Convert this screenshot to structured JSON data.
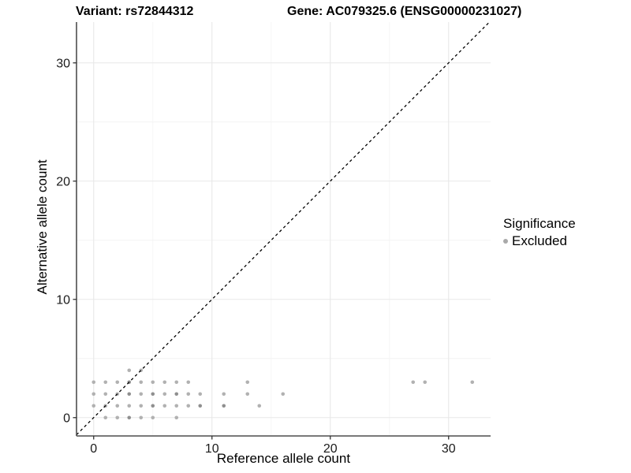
{
  "titles": {
    "variant": "Variant: rs72844312",
    "gene": "Gene: AC079325.6 (ENSG00000231027)"
  },
  "legend": {
    "title": "Significance",
    "items": [
      {
        "label": "Excluded",
        "color": "#a9a9a9",
        "shape": "circle"
      }
    ]
  },
  "chart_data": {
    "type": "scatter",
    "title": "",
    "xlabel": "Reference allele count",
    "ylabel": "Alternative allele count",
    "xlim": [
      -1.45,
      33.55
    ],
    "ylim": [
      -1.55,
      33.45
    ],
    "x_ticks": [
      0,
      10,
      20,
      30
    ],
    "y_ticks": [
      0,
      10,
      20,
      30
    ],
    "x_minor_ticks": [
      5,
      15,
      25
    ],
    "y_minor_ticks": [
      5,
      15,
      25
    ],
    "grid": true,
    "legend_position": "right",
    "identity_line": {
      "slope": 1,
      "intercept": 0,
      "style": "dashed",
      "color": "#000000"
    },
    "series": [
      {
        "name": "Excluded",
        "color": "#b1b1b1",
        "dark_color": "#8f8f8f",
        "points": [
          [
            1,
            0
          ],
          [
            2,
            0
          ],
          [
            3,
            0,
            1
          ],
          [
            4,
            0
          ],
          [
            5,
            0
          ],
          [
            7,
            0
          ],
          [
            0,
            1
          ],
          [
            1,
            1
          ],
          [
            2,
            1
          ],
          [
            3,
            1
          ],
          [
            4,
            1
          ],
          [
            5,
            1,
            1
          ],
          [
            6,
            1
          ],
          [
            7,
            1
          ],
          [
            8,
            1
          ],
          [
            9,
            1,
            1
          ],
          [
            11,
            1,
            1
          ],
          [
            14,
            1
          ],
          [
            0,
            2
          ],
          [
            1,
            2
          ],
          [
            2,
            2
          ],
          [
            3,
            2,
            1
          ],
          [
            4,
            2
          ],
          [
            5,
            2,
            1
          ],
          [
            6,
            2
          ],
          [
            7,
            2,
            1
          ],
          [
            8,
            2
          ],
          [
            9,
            2
          ],
          [
            11,
            2
          ],
          [
            13,
            2
          ],
          [
            16,
            2
          ],
          [
            0,
            3
          ],
          [
            1,
            3
          ],
          [
            2,
            3
          ],
          [
            3,
            3,
            1
          ],
          [
            4,
            3
          ],
          [
            5,
            3
          ],
          [
            6,
            3
          ],
          [
            7,
            3
          ],
          [
            8,
            3
          ],
          [
            13,
            3
          ],
          [
            27,
            3
          ],
          [
            28,
            3
          ],
          [
            32,
            3
          ],
          [
            3,
            4
          ],
          [
            4,
            4
          ]
        ]
      }
    ]
  },
  "colors": {
    "background": "#ffffff",
    "grid_major": "#e8e8e8",
    "grid_minor": "#f4f4f4",
    "axis_line": "#4d4d4d",
    "tick_mark": "#333333",
    "tick_label": "#1a1a1a",
    "text": "#000000"
  }
}
